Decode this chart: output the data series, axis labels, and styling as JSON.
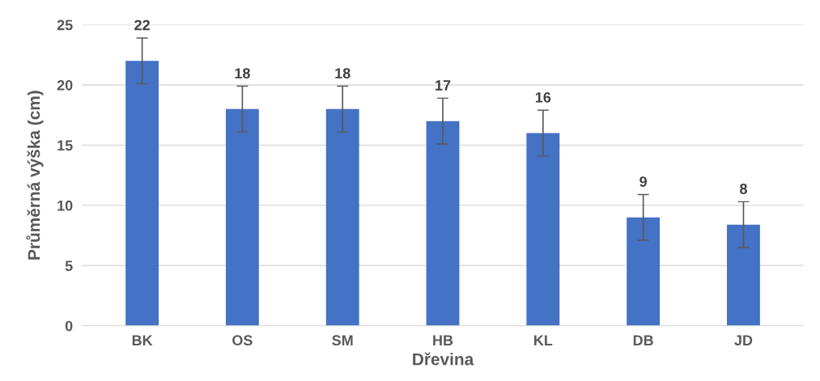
{
  "chart_data": {
    "type": "bar",
    "xlabel": "Dřevina",
    "ylabel": "Průměrná výška (cm)",
    "categories": [
      "BK",
      "OS",
      "SM",
      "HB",
      "KL",
      "DB",
      "JD"
    ],
    "values": [
      22,
      18,
      18,
      17,
      16,
      9,
      8.4
    ],
    "value_labels": [
      "22",
      "18",
      "18",
      "17",
      "16",
      "9",
      "8"
    ],
    "errors": [
      1.9,
      1.9,
      1.9,
      1.9,
      1.9,
      1.9,
      1.9
    ],
    "color": "#4472c4",
    "ylim": [
      0,
      25
    ],
    "yticks": [
      0,
      5,
      10,
      15,
      20,
      25
    ],
    "grid": "y",
    "legend": false
  }
}
